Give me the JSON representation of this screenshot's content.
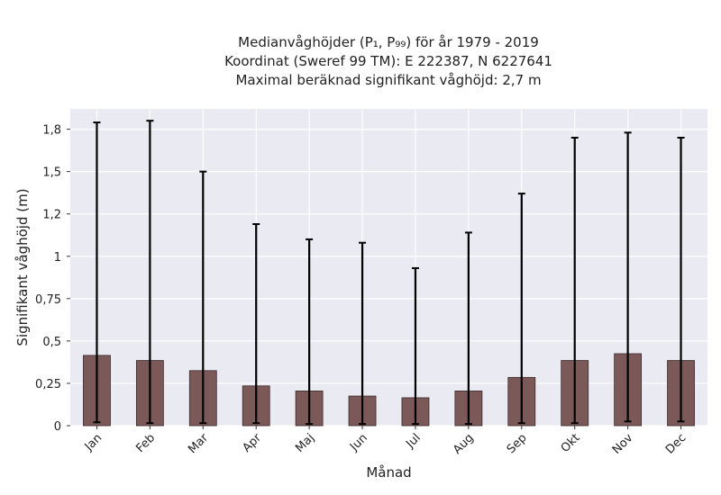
{
  "chart_data": {
    "type": "bar",
    "title_lines": [
      "Medianvåghöjder (P₁, P₉₉) för år 1979 - 2019",
      "Koordinat (Sweref 99 TM): E 222387, N 6227641",
      "Maximal beräknad signifikant våghöjd: 2,7 m"
    ],
    "xlabel": "Månad",
    "ylabel": "Signifikant våghöjd (m)",
    "categories": [
      "Jan",
      "Feb",
      "Mar",
      "Apr",
      "Maj",
      "Jun",
      "Jul",
      "Aug",
      "Sep",
      "Okt",
      "Nov",
      "Dec"
    ],
    "series": [
      {
        "values": [
          0.415,
          0.385,
          0.325,
          0.235,
          0.205,
          0.175,
          0.165,
          0.205,
          0.285,
          0.385,
          0.425,
          0.385
        ],
        "p1": [
          0.02,
          0.015,
          0.015,
          0.015,
          0.01,
          0.01,
          0.01,
          0.01,
          0.015,
          0.015,
          0.025,
          0.025
        ],
        "p99": [
          1.79,
          1.8,
          1.5,
          1.19,
          1.1,
          1.08,
          0.93,
          1.14,
          1.37,
          1.7,
          1.73,
          1.7
        ],
        "color": "#7c5959"
      }
    ],
    "ylim": [
      0,
      1.87
    ],
    "yticks": [
      0,
      0.25,
      0.5,
      0.75,
      1,
      1.25,
      1.5,
      1.75
    ],
    "ytick_labels": [
      "0",
      "0,25",
      "0,5",
      "0,75",
      "1",
      "1,2",
      "1,5",
      "1,8"
    ],
    "grid": true,
    "background_color": "#eaeaf2",
    "errorbar_color": "#000000"
  }
}
